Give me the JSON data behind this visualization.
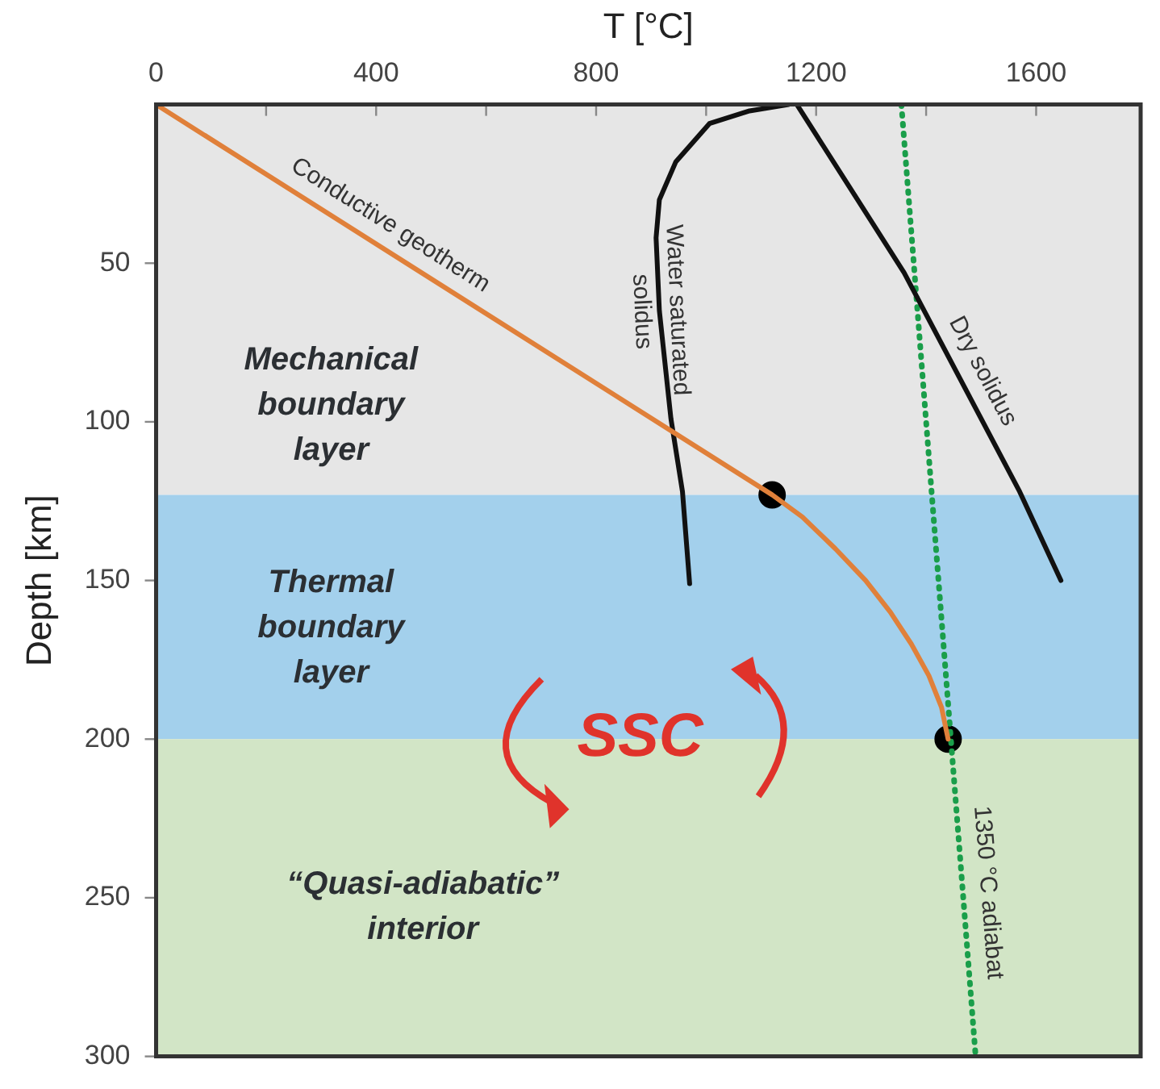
{
  "chart_data": {
    "type": "line",
    "xlabel": "T [°C]",
    "ylabel": "Depth [km]",
    "xlim": [
      0,
      1790
    ],
    "ylim": [
      300,
      0
    ],
    "xticks": [
      0,
      {
        "value": 200,
        "label": null
      },
      400,
      {
        "value": 600,
        "label": null
      },
      800,
      {
        "value": 1000,
        "label": null
      },
      1200,
      {
        "value": 1400,
        "label": null
      },
      1600
    ],
    "yticks": [
      50,
      100,
      150,
      200,
      250,
      300
    ],
    "grid": false,
    "legend": false,
    "marker": "none",
    "series": [
      {
        "name": "Conductive geotherm",
        "color": "#e0803a",
        "x": [
          0,
          1120,
          1175,
          1235,
          1290,
          1335,
          1373,
          1405,
          1428,
          1440
        ],
        "values": [
          0,
          123,
          130,
          140,
          150,
          160,
          170,
          180,
          190,
          200
        ]
      },
      {
        "name": "Water saturated solidus",
        "color": "#111111",
        "x": [
          1150,
          1079,
          1006,
          945,
          915,
          909,
          915,
          936,
          957,
          970
        ],
        "values": [
          0,
          2,
          6,
          18,
          30,
          42,
          65,
          99,
          122,
          151
        ]
      },
      {
        "name": "Dry solidus",
        "color": "#111111",
        "x": [
          1165,
          1360,
          1570,
          1645
        ],
        "values": [
          0,
          53,
          122,
          150
        ]
      },
      {
        "name": "1350 °C adiabat",
        "color": "#1a9e4a",
        "line_style": "dotted",
        "x": [
          1355,
          1490
        ],
        "values": [
          0,
          300
        ]
      },
      {
        "type": "scatter",
        "marker": "circle",
        "color": "#000000",
        "x": [
          1120,
          1440
        ],
        "values": [
          123,
          200
        ]
      }
    ],
    "bands": [
      {
        "axis": "y",
        "from": 0,
        "to": 123,
        "label": "Mechanical boundary layer",
        "color": "#e6e6e6"
      },
      {
        "axis": "y",
        "from": 123,
        "to": 200,
        "label": "Thermal boundary layer",
        "color": "#a3d0ec"
      },
      {
        "axis": "y",
        "from": 200,
        "to": 300,
        "label": "“Quasi-adiabatic” interior",
        "color": "#d2e5c6"
      }
    ],
    "annotations": [
      "SSC"
    ]
  }
}
